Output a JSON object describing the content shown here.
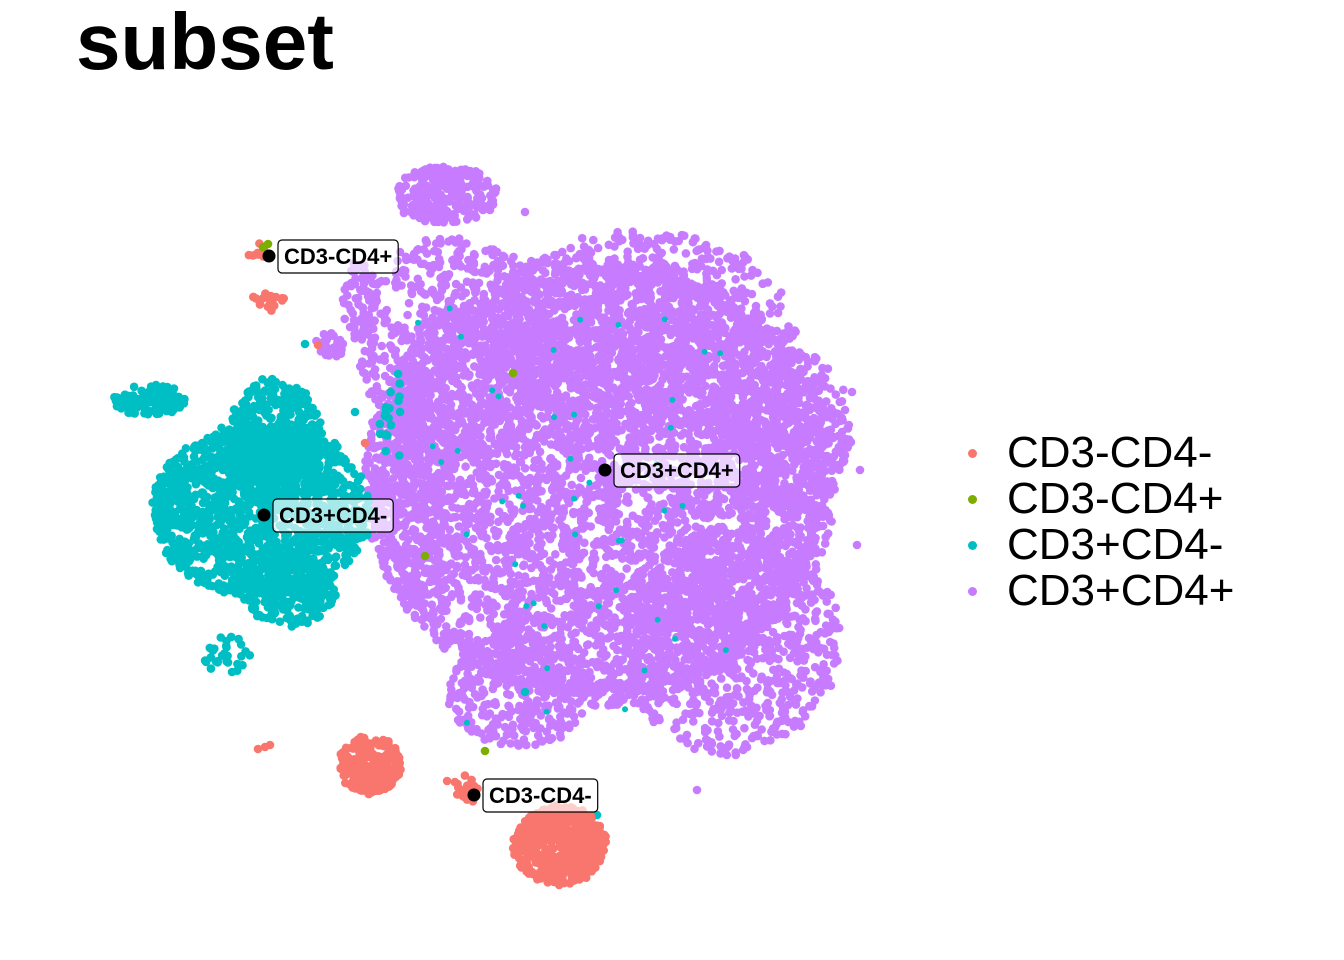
{
  "chart_data": {
    "type": "scatter",
    "title": "subset",
    "xlabel": "",
    "ylabel": "",
    "grid": false,
    "legend_position": "right",
    "series": [
      {
        "name": "CD3-CD4-",
        "color": "#F8766D"
      },
      {
        "name": "CD3-CD4+",
        "color": "#7CAE00"
      },
      {
        "name": "CD3+CD4-",
        "color": "#00BFC4"
      },
      {
        "name": "CD3+CD4+",
        "color": "#C77CFF"
      }
    ],
    "cluster_labels": [
      {
        "label": "CD3-CD4+",
        "series": 1,
        "x": 269,
        "y": 256
      },
      {
        "label": "CD3+CD4+",
        "series": 3,
        "x": 605,
        "y": 470
      },
      {
        "label": "CD3+CD4-",
        "series": 2,
        "x": 264,
        "y": 515
      },
      {
        "label": "CD3-CD4-",
        "series": 0,
        "x": 474,
        "y": 795
      }
    ]
  }
}
